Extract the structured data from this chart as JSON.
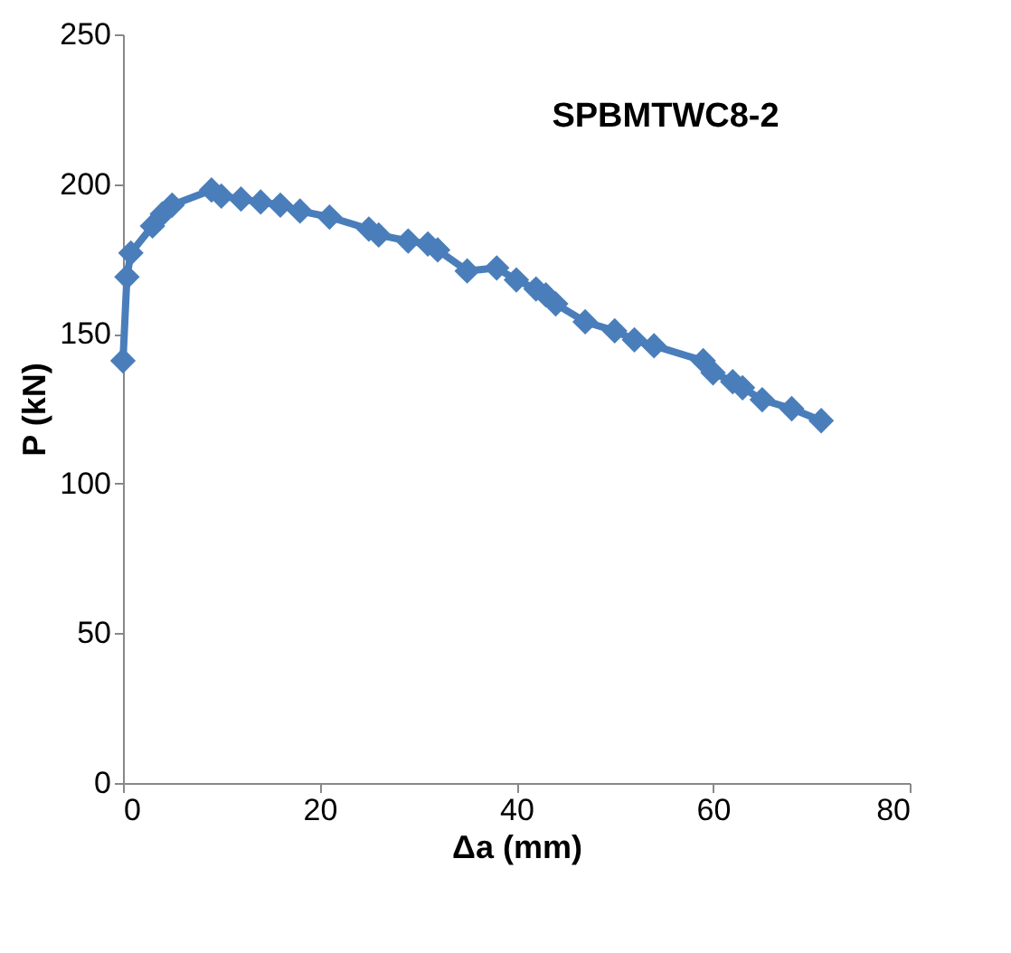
{
  "chart_data": {
    "type": "line",
    "title": "SPBMTWC8-2",
    "xlabel": "Δa (mm)",
    "ylabel": "P (kN)",
    "xlim": [
      0,
      80
    ],
    "xticks": [
      0,
      20,
      40,
      60,
      80
    ],
    "ylim": [
      0,
      250
    ],
    "yticks": [
      0,
      50,
      100,
      150,
      200,
      250
    ],
    "grid": false,
    "marker": "diamond",
    "line_style": "solid",
    "series": [
      {
        "color": "#4a7ebb",
        "x": [
          0,
          0.4,
          0.8,
          3,
          4,
          5,
          9,
          10,
          12,
          14,
          16,
          18,
          21,
          25,
          26,
          29,
          31,
          32,
          35,
          38,
          40,
          42,
          43,
          44,
          47,
          50,
          52,
          54,
          59,
          60,
          62,
          63,
          65,
          68,
          71
        ],
        "values": [
          141,
          169,
          177,
          186,
          190,
          193,
          198,
          196,
          195,
          194,
          193,
          191,
          189,
          185,
          183,
          181,
          180,
          178,
          171,
          172,
          168,
          165,
          163,
          160,
          154,
          151,
          148,
          146,
          141,
          137,
          134,
          132,
          128,
          125,
          121
        ]
      }
    ]
  }
}
